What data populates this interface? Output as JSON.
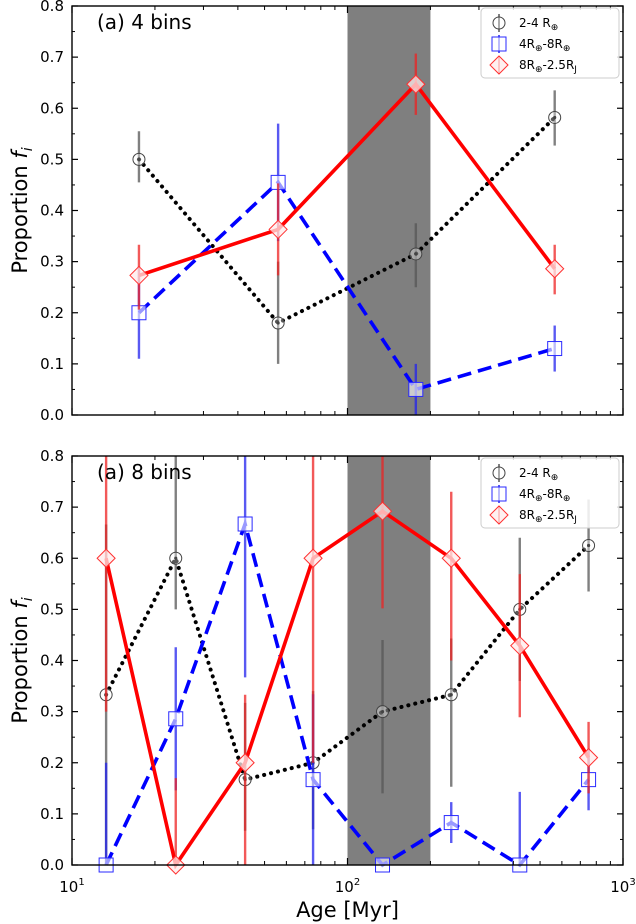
{
  "figure": {
    "xlabel": "Age [Myr]",
    "ylabel_main": "Proportion ",
    "ylabel_sub": "i",
    "ylabel_var": "f",
    "x_tick_labels": [
      {
        "base": "10",
        "exp": "1"
      },
      {
        "base": "10",
        "exp": "2"
      },
      {
        "base": "10",
        "exp": "3"
      }
    ]
  },
  "legend_entries": [
    {
      "main": "2-4 R",
      "sub": "⊕",
      "suffix": "",
      "sub2": ""
    },
    {
      "main": "4R",
      "sub": "⊕",
      "suffix": "-8R",
      "sub2": "⊕"
    },
    {
      "main": "8R",
      "sub": "⊕",
      "suffix": "-2.5R",
      "sub2": "J"
    }
  ],
  "chart_data": [
    {
      "type": "line",
      "title": "(a) 4 bins",
      "xscale": "log",
      "xlim": [
        10,
        1000
      ],
      "ylim": [
        0,
        0.8
      ],
      "yticks": [
        "0.0",
        "0.1",
        "0.2",
        "0.3",
        "0.4",
        "0.5",
        "0.6",
        "0.7",
        "0.8"
      ],
      "shaded_region": [
        100,
        200
      ],
      "legend_position": "top-right",
      "grid": false,
      "series": [
        {
          "name": "2-4 R⊕",
          "style": "dotted",
          "color": "#000000",
          "errcolor": "#555555",
          "marker": "circle",
          "x": [
            17.5,
            56,
            177,
            565
          ],
          "y": [
            0.5,
            0.18,
            0.315,
            0.582
          ],
          "err": [
            [
              0.045,
              0.055
            ],
            [
              0.08,
              0.12
            ],
            [
              0.065,
              0.06
            ],
            [
              0.055,
              0.053
            ]
          ]
        },
        {
          "name": "4R⊕-8R⊕",
          "style": "dashed",
          "color": "#0000ff",
          "errcolor": "#2222ee",
          "marker": "square",
          "x": [
            17.5,
            56,
            177,
            565
          ],
          "y": [
            0.2,
            0.455,
            0.05,
            0.13
          ],
          "err": [
            [
              0.09,
              0.09
            ],
            [
              0.115,
              0.115
            ],
            [
              0.05,
              0.05
            ],
            [
              0.045,
              0.045
            ]
          ]
        },
        {
          "name": "8R⊕-2.5RJ",
          "style": "solid",
          "color": "#ff0000",
          "errcolor": "#ee2222",
          "marker": "diamond",
          "x": [
            17.5,
            56,
            177,
            565
          ],
          "y": [
            0.273,
            0.363,
            0.647,
            0.286
          ],
          "err": [
            [
              0.067,
              0.06
            ],
            [
              0.09,
              0.09
            ],
            [
              0.06,
              0.06
            ],
            [
              0.05,
              0.047
            ]
          ]
        }
      ]
    },
    {
      "type": "line",
      "title": "(a) 8 bins",
      "xscale": "log",
      "xlim": [
        10,
        1000
      ],
      "ylim": [
        0,
        0.8
      ],
      "yticks": [
        "0.0",
        "0.1",
        "0.2",
        "0.3",
        "0.4",
        "0.5",
        "0.6",
        "0.7",
        "0.8"
      ],
      "shaded_region": [
        100,
        200
      ],
      "legend_position": "top-right",
      "grid": false,
      "series": [
        {
          "name": "2-4 R⊕",
          "style": "dotted",
          "color": "#000000",
          "errcolor": "#555555",
          "marker": "circle",
          "x": [
            13.3,
            23.8,
            42.5,
            75,
            134,
            238,
            422,
            750
          ],
          "y": [
            0.333,
            0.6,
            0.167,
            0.2,
            0.3,
            0.333,
            0.5,
            0.625
          ],
          "err": [
            [
              0.333,
              0.333
            ],
            [
              0.1,
              0.2
            ],
            [
              0.1,
              0.15
            ],
            [
              0.13,
              0.14
            ],
            [
              0.16,
              0.14
            ],
            [
              0.18,
              0.11
            ],
            [
              0.14,
              0.14
            ],
            [
              0.09,
              0.09
            ]
          ]
        },
        {
          "name": "4R⊕-8R⊕",
          "style": "dashed",
          "color": "#0000ff",
          "errcolor": "#2222ee",
          "marker": "square",
          "x": [
            13.3,
            23.8,
            42.5,
            75,
            134,
            238,
            422,
            750
          ],
          "y": [
            0.0,
            0.286,
            0.667,
            0.167,
            0.0,
            0.083,
            0.0,
            0.167
          ],
          "err": [
            [
              0.0,
              0.2
            ],
            [
              0.14,
              0.14
            ],
            [
              0.3,
              0.33
            ],
            [
              0.167,
              0.167
            ],
            [
              0.0,
              0.0
            ],
            [
              0.04,
              0.04
            ],
            [
              0.0,
              0.143
            ],
            [
              0.06,
              0.06
            ]
          ]
        },
        {
          "name": "8R⊕-2.5RJ",
          "style": "solid",
          "color": "#ff0000",
          "errcolor": "#ee2222",
          "marker": "diamond",
          "x": [
            13.3,
            23.8,
            42.5,
            75,
            134,
            238,
            422,
            750
          ],
          "y": [
            0.6,
            0.0,
            0.2,
            0.6,
            0.692,
            0.6,
            0.429,
            0.21
          ],
          "err": [
            [
              0.3,
              0.2
            ],
            [
              0.0,
              0.17
            ],
            [
              0.2,
              0.133
            ],
            [
              0.4,
              0.2
            ],
            [
              0.19,
              0.11
            ],
            [
              0.2,
              0.13
            ],
            [
              0.14,
              0.14
            ],
            [
              0.07,
              0.07
            ]
          ]
        }
      ]
    }
  ]
}
